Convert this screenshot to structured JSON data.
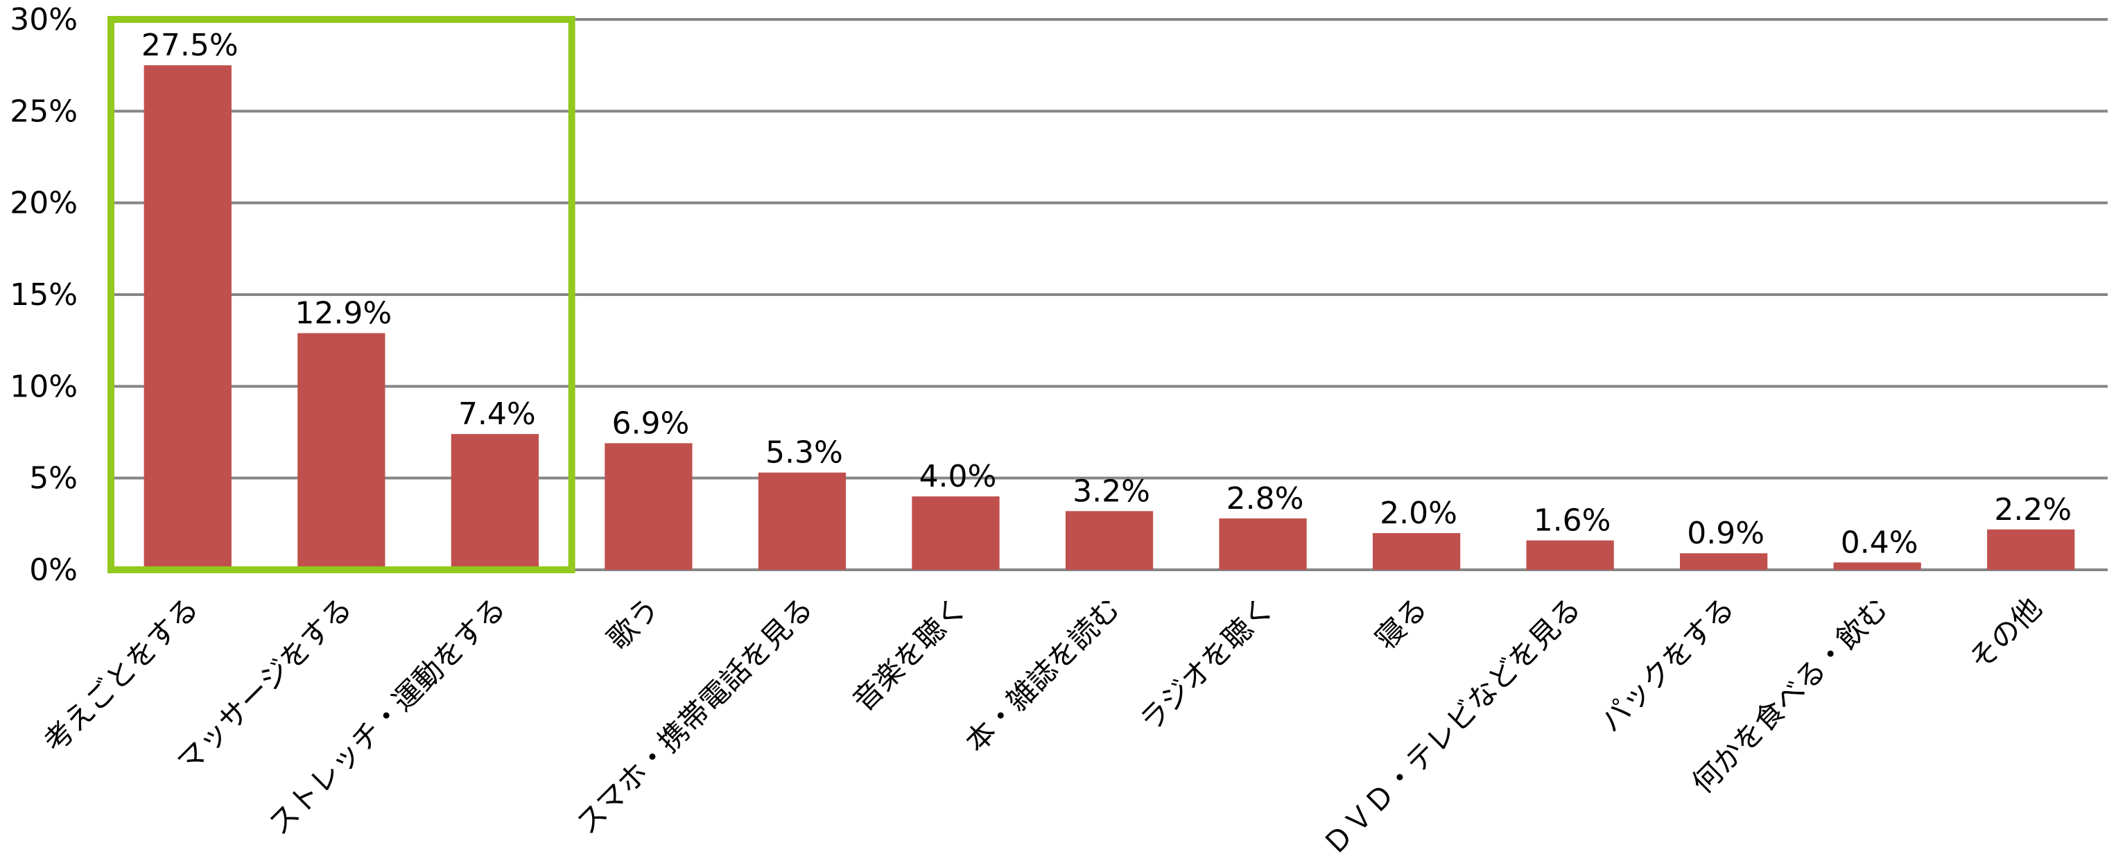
{
  "chart_data": {
    "type": "bar",
    "title": "",
    "xlabel": "",
    "ylabel": "",
    "ylim": [
      0,
      30
    ],
    "y_ticks": [
      0,
      5,
      10,
      15,
      20,
      25,
      30
    ],
    "y_tick_labels": [
      "0%",
      "5%",
      "10%",
      "15%",
      "20%",
      "25%",
      "30%"
    ],
    "grid": true,
    "categories": [
      "考えごとをする",
      "マッサージをする",
      "ストレッチ・運動をする",
      "歌う",
      "スマホ・携帯電話を見る",
      "音楽を聴く",
      "本・雑誌を読む",
      "ラジオを聴く",
      "寝る",
      "ＤＶＤ・テレビなどを見る",
      "パックをする",
      "何かを食べる・飲む",
      "その他"
    ],
    "values": [
      27.5,
      12.9,
      7.4,
      6.9,
      5.3,
      4.0,
      3.2,
      2.8,
      2.0,
      1.6,
      0.9,
      0.4,
      2.2
    ],
    "value_labels": [
      "27.5%",
      "12.9%",
      "7.4%",
      "6.9%",
      "5.3%",
      "4.0%",
      "3.2%",
      "2.8%",
      "2.0%",
      "1.6%",
      "0.9%",
      "0.4%",
      "2.2%"
    ],
    "bar_color": "#c0504d",
    "grid_color": "#868686",
    "highlight_color": "#92c91e",
    "highlight_categories": [
      "考えごとをする",
      "マッサージをする",
      "ストレッチ・運動をする"
    ]
  }
}
